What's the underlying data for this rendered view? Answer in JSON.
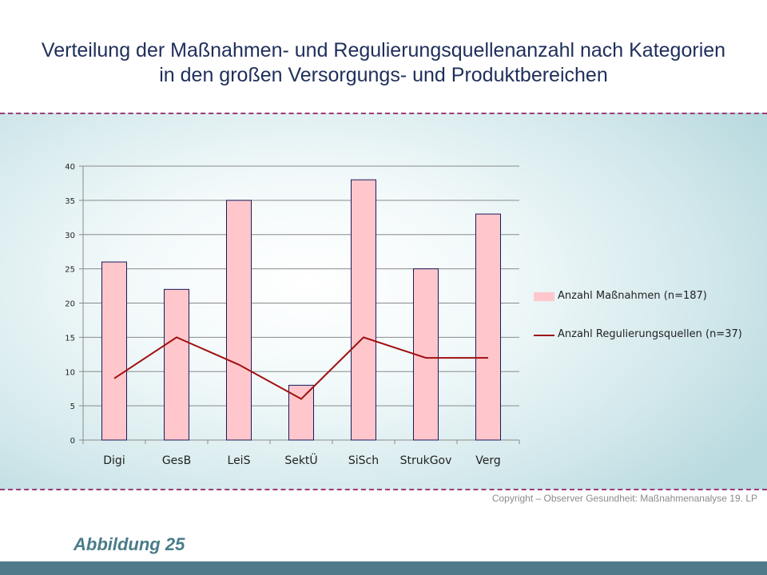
{
  "slide": {
    "title_line1": "Verteilung der Maßnahmen- und Regulierungsquellenanzahl nach Kategorien",
    "title_line2": "in den großen Versorgungs- und Produktbereichen",
    "copyright": "Copyright – Observer Gesundheit: Maßnahmenanalyse 19. LP",
    "figure_label": "Abbildung 25"
  },
  "colors": {
    "bar_fill": "#ffc7cc",
    "bar_stroke": "#1a1a5a",
    "line": "#a01010",
    "accent_dash": "#9c3a78",
    "footer": "#4f7a8a"
  },
  "chart_data": {
    "type": "bar",
    "categories": [
      "Digi",
      "GesB",
      "LeiS",
      "SektÜ",
      "SiSch",
      "StrukGov",
      "Verg"
    ],
    "series": [
      {
        "name": "Anzahl Maßnahmen (n=187)",
        "type": "bar",
        "values": [
          26,
          22,
          35,
          8,
          38,
          25,
          33
        ]
      },
      {
        "name": "Anzahl Regulierungsquellen (n=37)",
        "type": "line",
        "values": [
          9,
          15,
          11,
          6,
          15,
          12,
          12
        ]
      }
    ],
    "yticks": [
      "0",
      "5",
      "10",
      "15",
      "20",
      "25",
      "30",
      "35",
      "40"
    ],
    "ylim": [
      0,
      40
    ],
    "grid": true,
    "legend_position": "right"
  }
}
